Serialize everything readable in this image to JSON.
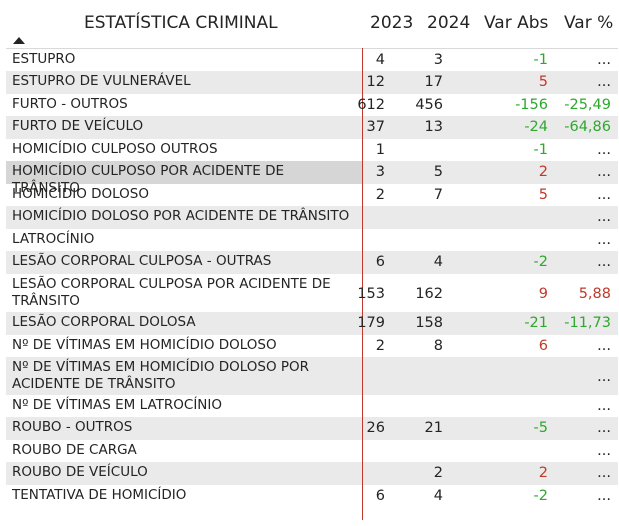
{
  "header": {
    "title": "ESTATÍSTICA CRIMINAL",
    "col_2023": "2023",
    "col_2024": "2024",
    "col_var_abs": "Var Abs",
    "col_var_pct": "Var %"
  },
  "rows": [
    {
      "name": "ESTUPRO",
      "y2023": "4",
      "y2024": "3",
      "var_abs": "-1",
      "var_pct": "..."
    },
    {
      "name": "ESTUPRO DE VULNERÁVEL",
      "y2023": "12",
      "y2024": "17",
      "var_abs": "5",
      "var_pct": "..."
    },
    {
      "name": "FURTO - OUTROS",
      "y2023": "612",
      "y2024": "456",
      "var_abs": "-156",
      "var_pct": "-25,49"
    },
    {
      "name": "FURTO DE VEÍCULO",
      "y2023": "37",
      "y2024": "13",
      "var_abs": "-24",
      "var_pct": "-64,86"
    },
    {
      "name": "HOMICÍDIO CULPOSO OUTROS",
      "y2023": "1",
      "y2024": "",
      "var_abs": "-1",
      "var_pct": "..."
    },
    {
      "name": "HOMICÍDIO CULPOSO POR ACIDENTE DE TRÂNSITO",
      "y2023": "3",
      "y2024": "5",
      "var_abs": "2",
      "var_pct": "..."
    },
    {
      "name": "HOMICÍDIO DOLOSO",
      "y2023": "2",
      "y2024": "7",
      "var_abs": "5",
      "var_pct": "..."
    },
    {
      "name": "HOMICÍDIO DOLOSO POR ACIDENTE DE TRÂNSITO",
      "y2023": "",
      "y2024": "",
      "var_abs": "",
      "var_pct": "..."
    },
    {
      "name": "LATROCÍNIO",
      "y2023": "",
      "y2024": "",
      "var_abs": "",
      "var_pct": "..."
    },
    {
      "name": "LESÃO CORPORAL CULPOSA - OUTRAS",
      "y2023": "6",
      "y2024": "4",
      "var_abs": "-2",
      "var_pct": "..."
    },
    {
      "name": "LESÃO CORPORAL CULPOSA POR ACIDENTE DE TRÂNSITO",
      "y2023": "153",
      "y2024": "162",
      "var_abs": "9",
      "var_pct": "5,88"
    },
    {
      "name": "LESÃO CORPORAL DOLOSA",
      "y2023": "179",
      "y2024": "158",
      "var_abs": "-21",
      "var_pct": "-11,73"
    },
    {
      "name": "Nº DE VÍTIMAS EM HOMICÍDIO DOLOSO",
      "y2023": "2",
      "y2024": "8",
      "var_abs": "6",
      "var_pct": "..."
    },
    {
      "name": "Nº DE VÍTIMAS EM HOMICÍDIO DOLOSO POR ACIDENTE DE TRÂNSITO",
      "y2023": "",
      "y2024": "",
      "var_abs": "",
      "var_pct": "..."
    },
    {
      "name": "Nº DE VÍTIMAS EM LATROCÍNIO",
      "y2023": "",
      "y2024": "",
      "var_abs": "",
      "var_pct": "..."
    },
    {
      "name": "ROUBO - OUTROS",
      "y2023": "26",
      "y2024": "21",
      "var_abs": "-5",
      "var_pct": "..."
    },
    {
      "name": "ROUBO DE CARGA",
      "y2023": "",
      "y2024": "",
      "var_abs": "",
      "var_pct": "..."
    },
    {
      "name": "ROUBO DE VEÍCULO",
      "y2023": "",
      "y2024": "2",
      "var_abs": "2",
      "var_pct": "..."
    },
    {
      "name": "TENTATIVA DE HOMICÍDIO",
      "y2023": "6",
      "y2024": "4",
      "var_abs": "-2",
      "var_pct": "..."
    }
  ],
  "colors": {
    "positive": "#c0392b",
    "negative": "#2ea82e",
    "divider": "#c0392b"
  }
}
